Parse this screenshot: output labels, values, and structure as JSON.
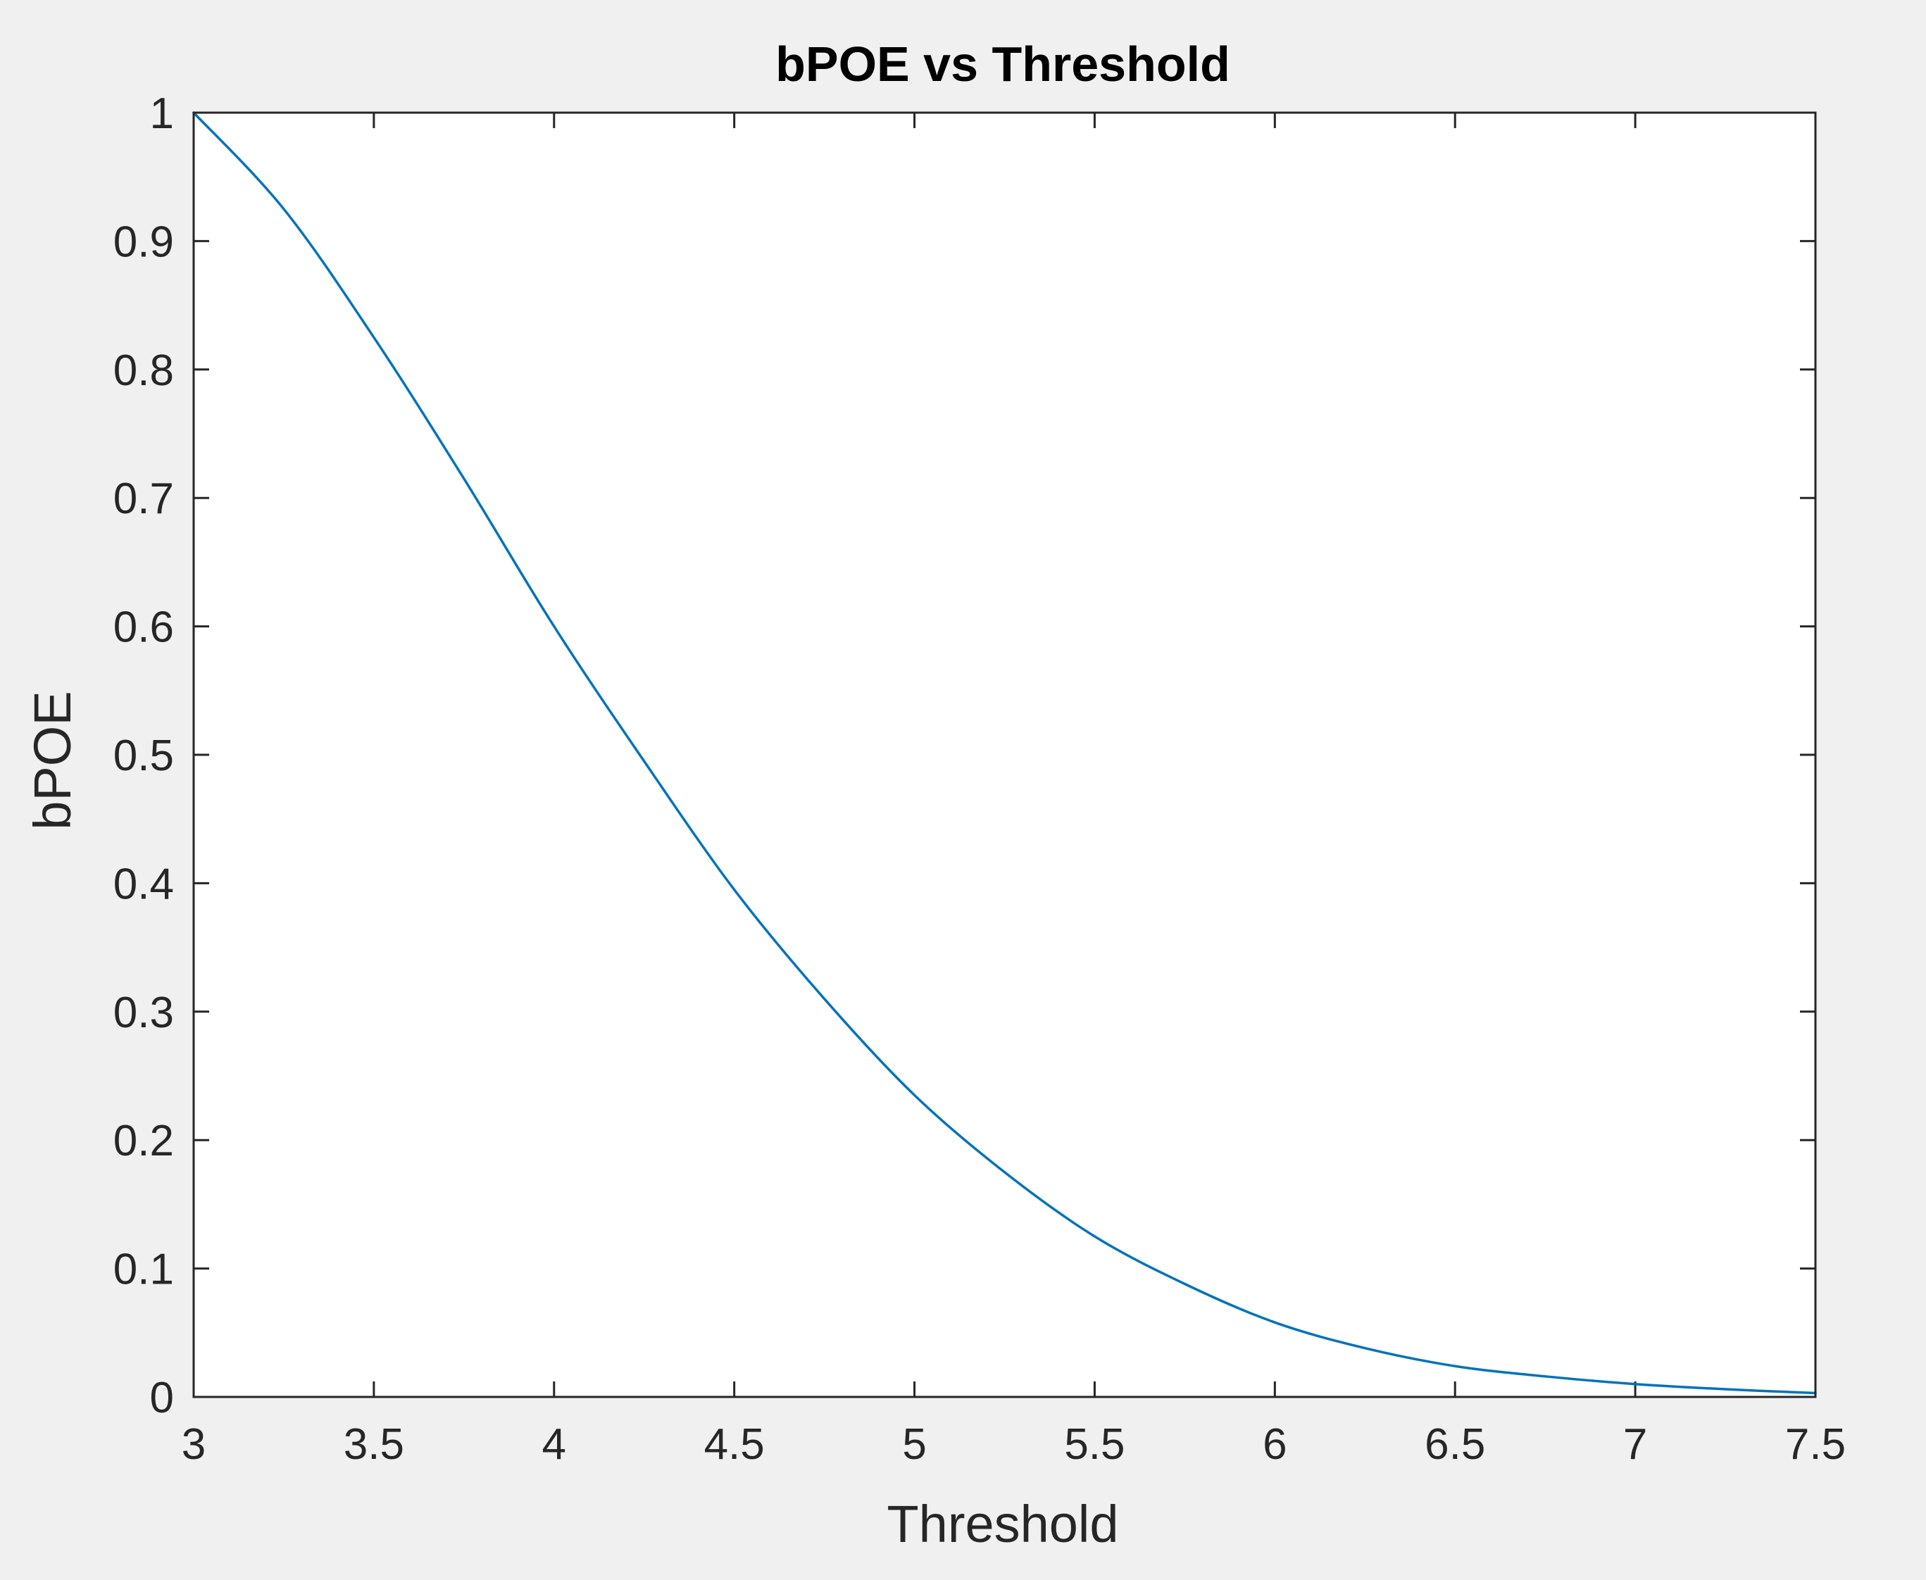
{
  "chart_data": {
    "type": "line",
    "title": "bPOE vs Threshold",
    "xlabel": "Threshold",
    "ylabel": "bPOE",
    "xlim": [
      3,
      7.5
    ],
    "ylim": [
      0,
      1
    ],
    "xticks": [
      3,
      3.5,
      4,
      4.5,
      5,
      5.5,
      6,
      6.5,
      7,
      7.5
    ],
    "xtick_labels": [
      "3",
      "3.5",
      "4",
      "4.5",
      "5",
      "5.5",
      "6",
      "6.5",
      "7",
      "7.5"
    ],
    "yticks": [
      0,
      0.1,
      0.2,
      0.3,
      0.4,
      0.5,
      0.6,
      0.7,
      0.8,
      0.9,
      1
    ],
    "ytick_labels": [
      "0",
      "0.1",
      "0.2",
      "0.3",
      "0.4",
      "0.5",
      "0.6",
      "0.7",
      "0.8",
      "0.9",
      "1"
    ],
    "grid": false,
    "legend": "none",
    "series": [
      {
        "color": "#0072BD",
        "x": [
          3.0,
          3.25,
          3.5,
          3.75,
          4.0,
          4.25,
          4.5,
          4.75,
          5.0,
          5.25,
          5.5,
          5.75,
          6.0,
          6.25,
          6.5,
          6.75,
          7.0,
          7.25,
          7.5
        ],
        "y": [
          1.0,
          0.925,
          0.825,
          0.715,
          0.6,
          0.495,
          0.395,
          0.31,
          0.235,
          0.175,
          0.125,
          0.088,
          0.058,
          0.038,
          0.024,
          0.016,
          0.01,
          0.006,
          0.003
        ]
      }
    ]
  }
}
